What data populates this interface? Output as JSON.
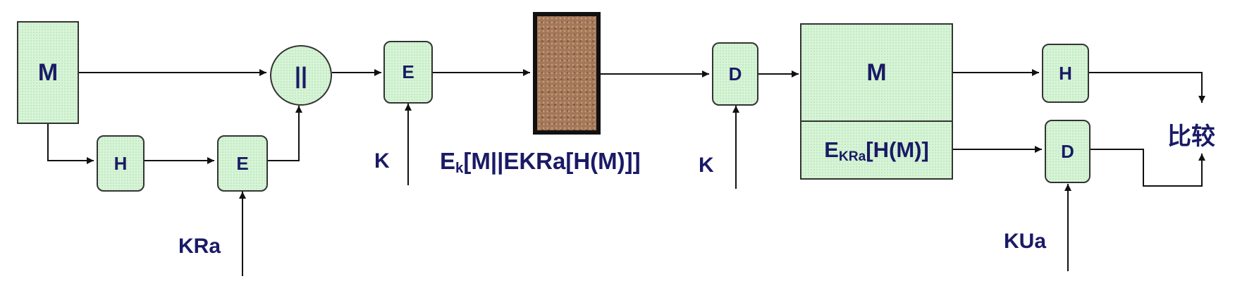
{
  "sender": {
    "message_box": "M",
    "hash_box": "H",
    "sign_encrypt_box": "E",
    "concat_op": "||",
    "session_encrypt_box": "E",
    "private_key_label": "KRa",
    "session_key_label": "K"
  },
  "channel": {
    "ciphertext_label_main": "E",
    "ciphertext_label_sub": "k",
    "ciphertext_label_rest": "[M||EKRa[H(M)]]"
  },
  "receiver": {
    "decrypt_box": "D",
    "session_key_label": "K",
    "message_part": "M",
    "signature_part_main": "E",
    "signature_part_sub": "KRa",
    "signature_part_rest": "[H(M)]",
    "hash_box": "H",
    "verify_decrypt_box": "D",
    "public_key_label": "KUa",
    "compare_label": "比较"
  }
}
